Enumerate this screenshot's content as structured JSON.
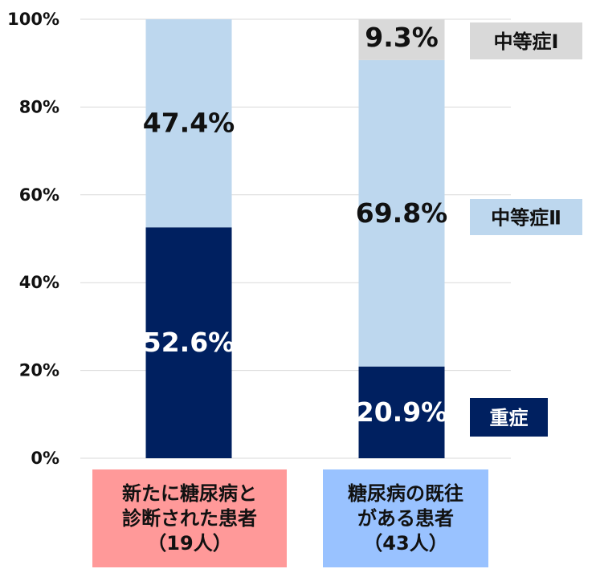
{
  "chart_data": {
    "type": "bar",
    "stacked": true,
    "categories": [
      {
        "lines": [
          "新たに糖尿病と",
          "診断された患者",
          "（19人）"
        ],
        "color": "#ff9999"
      },
      {
        "lines": [
          "糖尿病の既往",
          "がある患者",
          "（43人）"
        ],
        "color": "#99c2ff"
      }
    ],
    "series": [
      {
        "name": "重症",
        "values": [
          52.6,
          20.9
        ],
        "labels": [
          "52.6%",
          "20.9%"
        ],
        "color": "#002060",
        "label_color": "#ffffff"
      },
      {
        "name": "中等症Ⅱ",
        "values": [
          47.4,
          69.8
        ],
        "labels": [
          "47.4%",
          "69.8%"
        ],
        "color": "#bdd7ee",
        "label_color": "#111111"
      },
      {
        "name": "中等症Ⅰ",
        "values": [
          0,
          9.3
        ],
        "labels": [
          "",
          "9.3%"
        ],
        "color": "#d9d9d9",
        "label_color": "#111111"
      }
    ],
    "ylim": [
      0,
      100
    ],
    "yticks": [
      "0%",
      "20%",
      "40%",
      "60%",
      "80%",
      "100%"
    ],
    "grid": true,
    "legend": "right"
  }
}
